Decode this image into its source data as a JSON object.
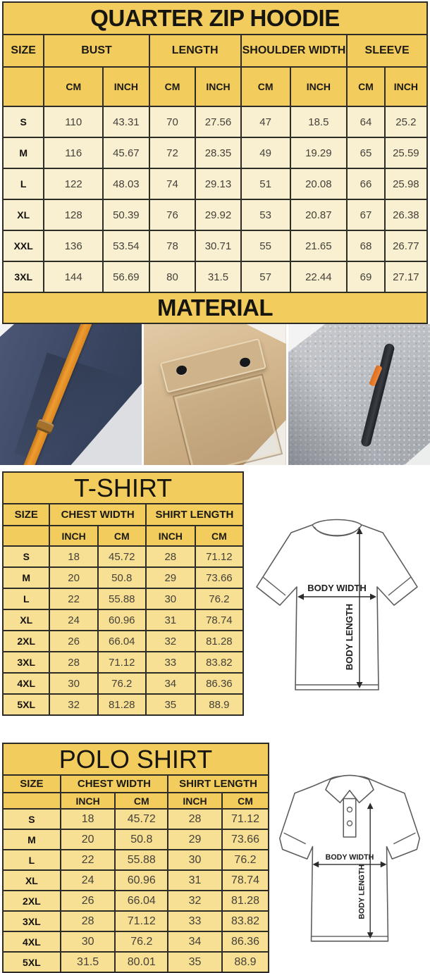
{
  "colors": {
    "header_yellow": "#f3cc5e",
    "hoodie_row_cream": "#f8f0d0",
    "shirt_row_yellow": "#f7e093",
    "table_border": "#2e2c26",
    "accent_orange": "#ef9c32",
    "fabric_navy": "#3d4963",
    "fabric_khaki": "#cbae85",
    "fabric_gray": "#b9bcc2"
  },
  "hoodie": {
    "title": "QUARTER ZIP HOODIE",
    "groups": [
      "SIZE",
      "BUST",
      "LENGTH",
      "SHOULDER WIDTH",
      "SLEEVE"
    ],
    "units": [
      "CM",
      "INCH",
      "CM",
      "INCH",
      "CM",
      "INCH",
      "CM",
      "INCH"
    ],
    "rows": [
      {
        "size": "S",
        "values": [
          "110",
          "43.31",
          "70",
          "27.56",
          "47",
          "18.5",
          "64",
          "25.2"
        ]
      },
      {
        "size": "M",
        "values": [
          "116",
          "45.67",
          "72",
          "28.35",
          "49",
          "19.29",
          "65",
          "25.59"
        ]
      },
      {
        "size": "L",
        "values": [
          "122",
          "48.03",
          "74",
          "29.13",
          "51",
          "20.08",
          "66",
          "25.98"
        ]
      },
      {
        "size": "XL",
        "values": [
          "128",
          "50.39",
          "76",
          "29.92",
          "53",
          "20.87",
          "67",
          "26.38"
        ]
      },
      {
        "size": "XXL",
        "values": [
          "136",
          "53.54",
          "78",
          "30.71",
          "55",
          "21.65",
          "68",
          "26.77"
        ]
      },
      {
        "size": "3XL",
        "values": [
          "144",
          "56.69",
          "80",
          "31.5",
          "57",
          "22.44",
          "69",
          "27.17"
        ]
      }
    ]
  },
  "material": {
    "title": "MATERIAL",
    "photos": [
      {
        "name": "navy-fleece-with-orange-drawstring"
      },
      {
        "name": "khaki-fabric-snap-flap-pocket"
      },
      {
        "name": "heather-gray-fleece-zip-pocket"
      }
    ]
  },
  "tshirt": {
    "title": "T-SHIRT",
    "groups": [
      "SIZE",
      "CHEST WIDTH",
      "SHIRT LENGTH"
    ],
    "units": [
      "INCH",
      "CM",
      "INCH",
      "CM"
    ],
    "rows": [
      {
        "size": "S",
        "values": [
          "18",
          "45.72",
          "28",
          "71.12"
        ]
      },
      {
        "size": "M",
        "values": [
          "20",
          "50.8",
          "29",
          "73.66"
        ]
      },
      {
        "size": "L",
        "values": [
          "22",
          "55.88",
          "30",
          "76.2"
        ]
      },
      {
        "size": "XL",
        "values": [
          "24",
          "60.96",
          "31",
          "78.74"
        ]
      },
      {
        "size": "2XL",
        "values": [
          "26",
          "66.04",
          "32",
          "81.28"
        ]
      },
      {
        "size": "3XL",
        "values": [
          "28",
          "71.12",
          "33",
          "83.82"
        ]
      },
      {
        "size": "4XL",
        "values": [
          "30",
          "76.2",
          "34",
          "86.36"
        ]
      },
      {
        "size": "5XL",
        "values": [
          "32",
          "81.28",
          "35",
          "88.9"
        ]
      }
    ],
    "diagram": {
      "width_label": "BODY WIDTH",
      "length_label": "BODY LENGTH"
    }
  },
  "polo": {
    "title": "POLO SHIRT",
    "groups": [
      "SIZE",
      "CHEST WIDTH",
      "SHIRT LENGTH"
    ],
    "units": [
      "INCH",
      "CM",
      "INCH",
      "CM"
    ],
    "rows": [
      {
        "size": "S",
        "values": [
          "18",
          "45.72",
          "28",
          "71.12"
        ]
      },
      {
        "size": "M",
        "values": [
          "20",
          "50.8",
          "29",
          "73.66"
        ]
      },
      {
        "size": "L",
        "values": [
          "22",
          "55.88",
          "30",
          "76.2"
        ]
      },
      {
        "size": "XL",
        "values": [
          "24",
          "60.96",
          "31",
          "78.74"
        ]
      },
      {
        "size": "2XL",
        "values": [
          "26",
          "66.04",
          "32",
          "81.28"
        ]
      },
      {
        "size": "3XL",
        "values": [
          "28",
          "71.12",
          "33",
          "83.82"
        ]
      },
      {
        "size": "4XL",
        "values": [
          "30",
          "76.2",
          "34",
          "86.36"
        ]
      },
      {
        "size": "5XL",
        "values": [
          "31.5",
          "80.01",
          "35",
          "88.9"
        ]
      }
    ],
    "diagram": {
      "width_label": "BODY WIDTH",
      "length_label": "BODY LENGTH"
    }
  }
}
